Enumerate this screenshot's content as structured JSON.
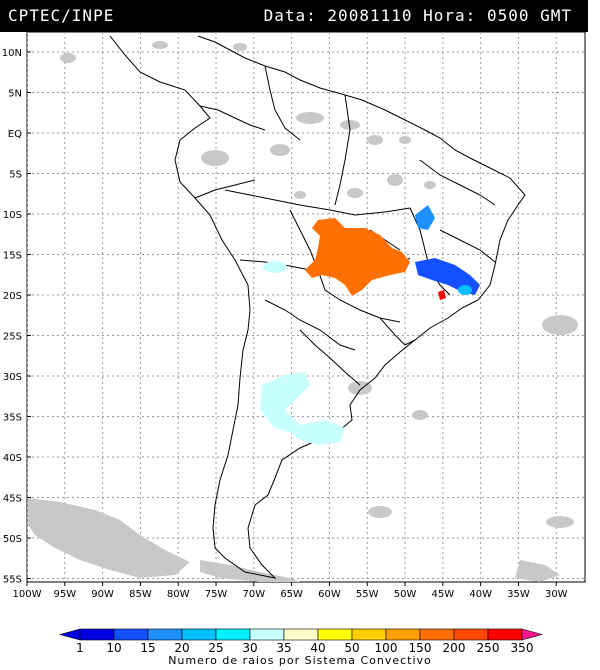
{
  "header": {
    "source": "CPTEC/INPE",
    "date_label": "Data:",
    "date_value": "20081110",
    "hour_label": "Hora:",
    "hour_value": "0500 GMT"
  },
  "map": {
    "lat_labels": [
      "10N",
      "5N",
      "EQ",
      "5S",
      "10S",
      "15S",
      "20S",
      "25S",
      "30S",
      "35S",
      "40S",
      "45S",
      "50S",
      "55S"
    ],
    "lon_labels": [
      "100W",
      "95W",
      "90W",
      "85W",
      "80W",
      "75W",
      "70W",
      "65W",
      "60W",
      "55W",
      "50W",
      "45W",
      "40W",
      "35W",
      "30W"
    ],
    "lat_values": [
      10,
      5,
      0,
      -5,
      -10,
      -15,
      -20,
      -25,
      -30,
      -35,
      -40,
      -45,
      -50,
      -55
    ],
    "lon_values": [
      -100,
      -95,
      -90,
      -85,
      -80,
      -75,
      -70,
      -65,
      -60,
      -55,
      -50,
      -45,
      -40,
      -35,
      -30
    ],
    "grid": true,
    "cloud_color": "#c8c8c8"
  },
  "legend": {
    "ticks": [
      "1",
      "10",
      "15",
      "20",
      "25",
      "30",
      "35",
      "40",
      "50",
      "100",
      "150",
      "200",
      "250",
      "350"
    ],
    "colors": [
      "#0000e0",
      "#1450ff",
      "#1e90ff",
      "#00c0ff",
      "#00f0ff",
      "#c8ffff",
      "#ffffc8",
      "#ffff00",
      "#ffd000",
      "#ffa000",
      "#ff7000",
      "#ff4800",
      "#ff0000",
      "#ff1493"
    ],
    "caption": "Numero de raios por Sistema Convectivo"
  }
}
